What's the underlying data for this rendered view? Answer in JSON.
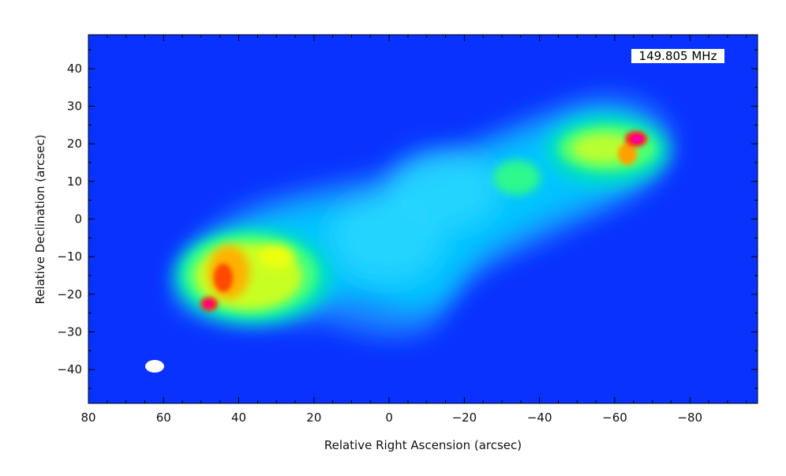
{
  "plot": {
    "frequency_label": "149.805 MHz",
    "xlabel": "Relative Right Ascension (arcsec)",
    "ylabel": "Relative Declination (arcsec)",
    "xlim": [
      80,
      -98
    ],
    "ylim": [
      -49,
      49
    ],
    "x_ticks": [
      "80",
      "60",
      "40",
      "20",
      "0",
      "−20",
      "−40",
      "−60",
      "−80"
    ],
    "y_ticks": [
      "40",
      "30",
      "20",
      "10",
      "0",
      "−10",
      "−20",
      "−30",
      "−40"
    ],
    "colormap": [
      "#0033ff",
      "#00c8ff",
      "#00ff80",
      "#ffff00",
      "#ff8000",
      "#ff0000",
      "#ff0080"
    ]
  }
}
